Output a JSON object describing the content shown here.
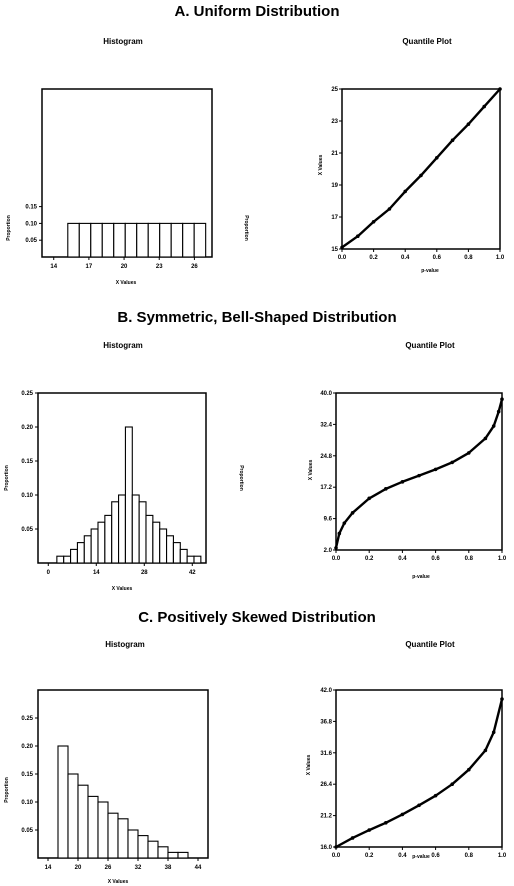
{
  "sections": [
    {
      "title": "A. Uniform Distribution",
      "histogram": {
        "title": "Histogram",
        "xlabel": "X Values",
        "ylabel": "Proportion",
        "ylabel_right": "Proportion",
        "xticks": [
          "14",
          "17",
          "20",
          "23",
          "26"
        ],
        "yticks": [
          "0.05",
          "0.10",
          "0.15"
        ],
        "xlim": [
          13,
          27.5
        ],
        "ylim": [
          0,
          0.5
        ],
        "bar_start": 15.2,
        "bar_width": 0.98,
        "values": [
          0.1,
          0.1,
          0.1,
          0.1,
          0.1,
          0.1,
          0.1,
          0.1,
          0.1,
          0.1,
          0.1,
          0.1
        ]
      },
      "quantile": {
        "title": "Quantile Plot",
        "xlabel": "p-value",
        "ylabel": "X Values",
        "xticks": [
          "0.0",
          "0.2",
          "0.4",
          "0.6",
          "0.8",
          "1.0"
        ],
        "yticks": [
          "15",
          "17",
          "19",
          "21",
          "23",
          "25"
        ],
        "xlim": [
          0,
          1
        ],
        "ylim": [
          15,
          25
        ],
        "curve": [
          [
            0,
            15.1
          ],
          [
            0.1,
            15.8
          ],
          [
            0.2,
            16.7
          ],
          [
            0.3,
            17.5
          ],
          [
            0.4,
            18.6
          ],
          [
            0.5,
            19.6
          ],
          [
            0.6,
            20.7
          ],
          [
            0.7,
            21.8
          ],
          [
            0.8,
            22.8
          ],
          [
            0.9,
            23.9
          ],
          [
            1.0,
            25.0
          ]
        ]
      }
    },
    {
      "title": "B. Symmetric, Bell-Shaped Distribution",
      "histogram": {
        "title": "Histogram",
        "xlabel": "X Values",
        "ylabel": "Proportion",
        "ylabel_right": "Proportion",
        "xticks": [
          "0",
          "14",
          "28",
          "42"
        ],
        "yticks": [
          "0.05",
          "0.10",
          "0.15",
          "0.20",
          "0.25"
        ],
        "xlim": [
          -3,
          46
        ],
        "ylim": [
          0,
          0.25
        ],
        "bar_start": 2.5,
        "bar_width": 2.0,
        "values": [
          0.01,
          0.01,
          0.02,
          0.03,
          0.04,
          0.05,
          0.06,
          0.07,
          0.09,
          0.1,
          0.2,
          0.1,
          0.09,
          0.07,
          0.06,
          0.05,
          0.04,
          0.03,
          0.02,
          0.01,
          0.01
        ]
      },
      "quantile": {
        "title": "Quantile Plot",
        "xlabel": "p-value",
        "ylabel": "X Values",
        "xticks": [
          "0.0",
          "0.2",
          "0.4",
          "0.6",
          "0.8",
          "1.0"
        ],
        "yticks": [
          "2.0",
          "9.6",
          "17.2",
          "24.8",
          "32.4",
          "40.0"
        ],
        "xlim": [
          0,
          1
        ],
        "ylim": [
          2,
          40
        ],
        "curve": [
          [
            0,
            2.5
          ],
          [
            0.02,
            6.0
          ],
          [
            0.05,
            8.5
          ],
          [
            0.1,
            11.0
          ],
          [
            0.2,
            14.5
          ],
          [
            0.3,
            16.8
          ],
          [
            0.4,
            18.5
          ],
          [
            0.5,
            20.0
          ],
          [
            0.6,
            21.5
          ],
          [
            0.7,
            23.2
          ],
          [
            0.8,
            25.5
          ],
          [
            0.9,
            29.0
          ],
          [
            0.95,
            32.0
          ],
          [
            0.98,
            35.5
          ],
          [
            1.0,
            38.5
          ]
        ]
      }
    },
    {
      "title": "C. Positively Skewed Distribution",
      "histogram": {
        "title": "Histogram",
        "xlabel": "X Values",
        "ylabel": "Proportion",
        "xticks": [
          "14",
          "20",
          "26",
          "32",
          "38",
          "44"
        ],
        "yticks": [
          "0.05",
          "0.10",
          "0.15",
          "0.20",
          "0.25"
        ],
        "xlim": [
          12,
          46
        ],
        "ylim": [
          0,
          0.3
        ],
        "bar_start": 16,
        "bar_width": 2.0,
        "values": [
          0.2,
          0.15,
          0.13,
          0.11,
          0.1,
          0.08,
          0.07,
          0.05,
          0.04,
          0.03,
          0.02,
          0.01,
          0.01
        ]
      },
      "quantile": {
        "title": "Quantile Plot",
        "xlabel": "p-value",
        "ylabel": "X Values",
        "xticks": [
          "0.0",
          "0.2",
          "0.4",
          "0.6",
          "0.8",
          "1.0"
        ],
        "yticks": [
          "16.0",
          "21.2",
          "26.4",
          "31.6",
          "36.8",
          "42.0"
        ],
        "xlim": [
          0,
          1
        ],
        "ylim": [
          16,
          42
        ],
        "curve": [
          [
            0,
            16.0
          ],
          [
            0.1,
            17.5
          ],
          [
            0.2,
            18.8
          ],
          [
            0.3,
            20.0
          ],
          [
            0.4,
            21.4
          ],
          [
            0.5,
            22.9
          ],
          [
            0.6,
            24.5
          ],
          [
            0.7,
            26.4
          ],
          [
            0.8,
            28.8
          ],
          [
            0.9,
            32.0
          ],
          [
            0.95,
            35.0
          ],
          [
            1.0,
            40.5
          ]
        ]
      }
    }
  ],
  "chart_data": [
    {
      "type": "bar",
      "title": "Histogram",
      "xlabel": "X Values",
      "ylabel": "Proportion",
      "bar_start": 15.2,
      "bar_width": 0.98,
      "values": [
        0.1,
        0.1,
        0.1,
        0.1,
        0.1,
        0.1,
        0.1,
        0.1,
        0.1,
        0.1,
        0.1,
        0.1
      ]
    },
    {
      "type": "line",
      "title": "Quantile Plot",
      "xlabel": "p-value",
      "ylabel": "X Values",
      "x": [
        0,
        0.1,
        0.2,
        0.3,
        0.4,
        0.5,
        0.6,
        0.7,
        0.8,
        0.9,
        1.0
      ],
      "y": [
        15.1,
        15.8,
        16.7,
        17.5,
        18.6,
        19.6,
        20.7,
        21.8,
        22.8,
        23.9,
        25.0
      ]
    },
    {
      "type": "bar",
      "title": "Histogram",
      "xlabel": "X Values",
      "ylabel": "Proportion",
      "bar_start": 2.5,
      "bar_width": 2.0,
      "values": [
        0.01,
        0.01,
        0.02,
        0.03,
        0.04,
        0.05,
        0.06,
        0.07,
        0.09,
        0.1,
        0.2,
        0.1,
        0.09,
        0.07,
        0.06,
        0.05,
        0.04,
        0.03,
        0.02,
        0.01,
        0.01
      ]
    },
    {
      "type": "line",
      "title": "Quantile Plot",
      "xlabel": "p-value",
      "ylabel": "X Values",
      "x": [
        0,
        0.02,
        0.05,
        0.1,
        0.2,
        0.3,
        0.4,
        0.5,
        0.6,
        0.7,
        0.8,
        0.9,
        0.95,
        0.98,
        1.0
      ],
      "y": [
        2.5,
        6.0,
        8.5,
        11.0,
        14.5,
        16.8,
        18.5,
        20.0,
        21.5,
        23.2,
        25.5,
        29.0,
        32.0,
        35.5,
        38.5
      ]
    },
    {
      "type": "bar",
      "title": "Histogram",
      "xlabel": "X Values",
      "ylabel": "Proportion",
      "bar_start": 16,
      "bar_width": 2.0,
      "values": [
        0.2,
        0.15,
        0.13,
        0.11,
        0.1,
        0.08,
        0.07,
        0.05,
        0.04,
        0.03,
        0.02,
        0.01,
        0.01
      ]
    },
    {
      "type": "line",
      "title": "Quantile Plot",
      "xlabel": "p-value",
      "ylabel": "X Values",
      "x": [
        0,
        0.1,
        0.2,
        0.3,
        0.4,
        0.5,
        0.6,
        0.7,
        0.8,
        0.9,
        0.95,
        1.0
      ],
      "y": [
        16.0,
        17.5,
        18.8,
        20.0,
        21.4,
        22.9,
        24.5,
        26.4,
        28.8,
        32.0,
        35.0,
        40.5
      ]
    }
  ]
}
